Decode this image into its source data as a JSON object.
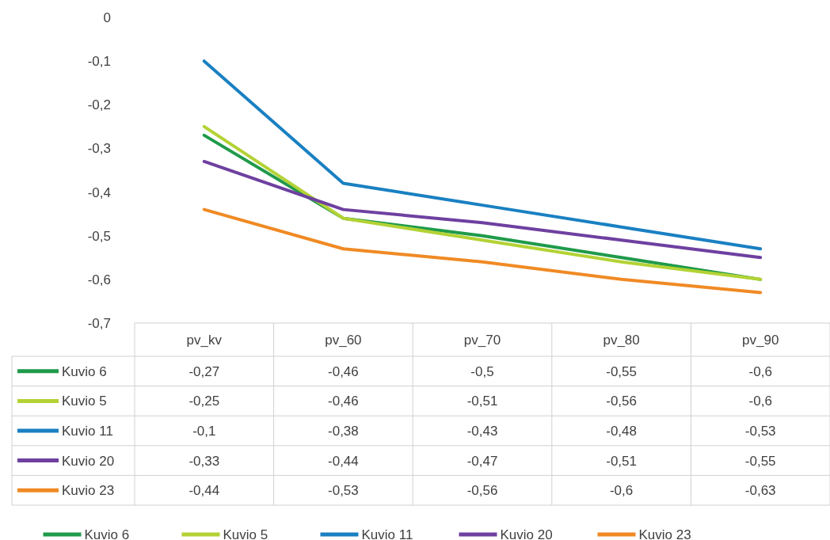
{
  "chart_data": {
    "type": "line",
    "categories": [
      "pv_kv",
      "pv_60",
      "pv_70",
      "pv_80",
      "pv_90"
    ],
    "series": [
      {
        "name": "Kuvio 6",
        "color": "#1f9a4a",
        "values": [
          -0.27,
          -0.46,
          -0.5,
          -0.55,
          -0.6
        ],
        "value_labels": [
          "-0,27",
          "-0,46",
          "-0,5",
          "-0,55",
          "-0,6"
        ]
      },
      {
        "name": "Kuvio 5",
        "color": "#b3d234",
        "values": [
          -0.25,
          -0.46,
          -0.51,
          -0.56,
          -0.6
        ],
        "value_labels": [
          "-0,25",
          "-0,46",
          "-0,51",
          "-0,56",
          "-0,6"
        ]
      },
      {
        "name": "Kuvio 11",
        "color": "#1a80c2",
        "values": [
          -0.1,
          -0.38,
          -0.43,
          -0.48,
          -0.53
        ],
        "value_labels": [
          "-0,1",
          "-0,38",
          "-0,43",
          "-0,48",
          "-0,53"
        ]
      },
      {
        "name": "Kuvio 20",
        "color": "#6e40a0",
        "values": [
          -0.33,
          -0.44,
          -0.47,
          -0.51,
          -0.55
        ],
        "value_labels": [
          "-0,33",
          "-0,44",
          "-0,47",
          "-0,51",
          "-0,55"
        ]
      },
      {
        "name": "Kuvio 23",
        "color": "#f08a24",
        "values": [
          -0.44,
          -0.53,
          -0.56,
          -0.6,
          -0.63
        ],
        "value_labels": [
          "-0,44",
          "-0,53",
          "-0,56",
          "-0,6",
          "-0,63"
        ]
      }
    ],
    "ylim": [
      -0.7,
      0
    ],
    "yticks": [
      0,
      {
        "value": -0.1,
        "label": "-0,1"
      },
      {
        "value": -0.2,
        "label": "-0,2"
      },
      {
        "value": -0.3,
        "label": "-0,3"
      },
      {
        "value": -0.4,
        "label": "-0,4"
      },
      {
        "value": -0.5,
        "label": "-0,5"
      },
      {
        "value": -0.6,
        "label": "-0,6"
      },
      {
        "value": -0.7,
        "label": "-0,7"
      }
    ],
    "legend": "bottom",
    "marker": "none",
    "line_style": "solid"
  }
}
